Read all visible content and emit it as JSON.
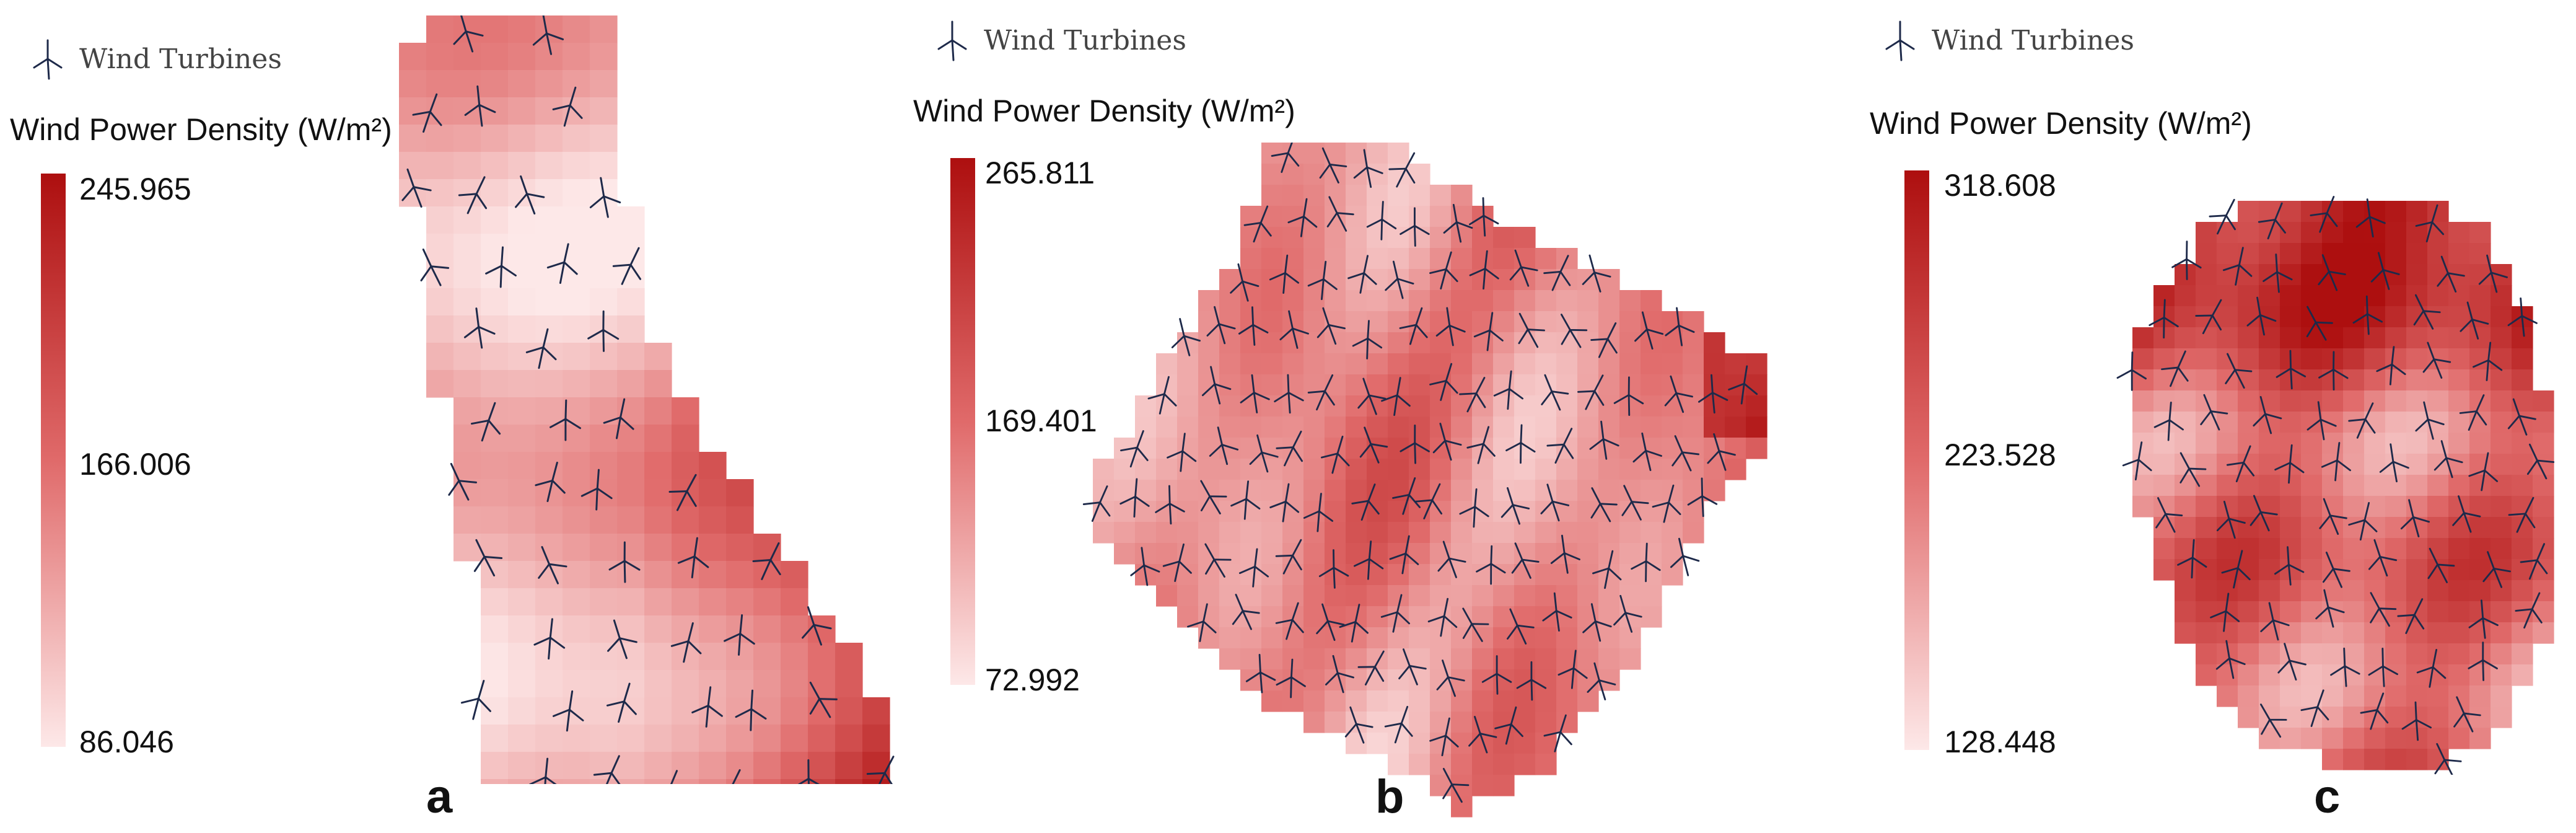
{
  "legend": {
    "turbine_label": "Wind Turbines",
    "density_title": "Wind Power Density (W/m²)"
  },
  "colors": {
    "low": "#fde8e8",
    "mid": "#e06a6a",
    "high": "#ad0f0f",
    "turbine": "#1e2a4a"
  },
  "panels": [
    {
      "letter": "a",
      "max": "245.965",
      "mid": "166.006",
      "min": "86.046"
    },
    {
      "letter": "b",
      "max": "265.811",
      "mid": "169.401",
      "min": "72.992"
    },
    {
      "letter": "c",
      "max": "318.608",
      "mid": "223.528",
      "min": "128.448"
    }
  ]
}
